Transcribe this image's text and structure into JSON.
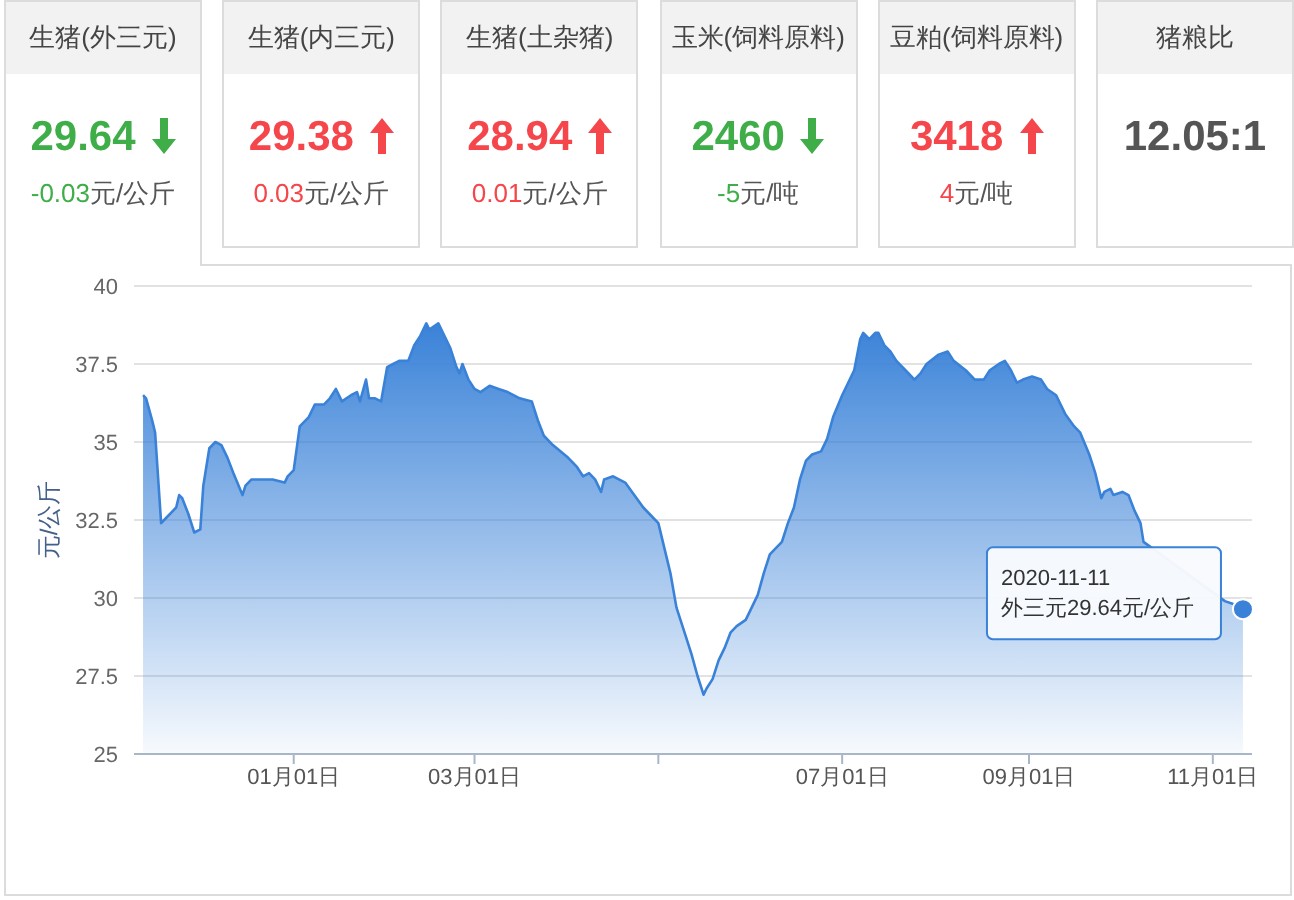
{
  "chart_data": [
    {
      "type": "other",
      "data_labels": true,
      "categories": [
        "生猪(外三元)",
        "生猪(内三元)",
        "生猪(土杂猪)",
        "玉米(饲料原料)",
        "豆粕(饲料原料)",
        "猪粮比"
      ],
      "series": [
        {
          "values": [
            29.64,
            29.38,
            28.94,
            2460,
            3418,
            12.05
          ],
          "value_labels": [
            "29.64",
            "29.38",
            "28.94",
            "2460",
            "3418",
            "12.05:1"
          ]
        },
        {
          "values": [
            -0.03,
            0.03,
            0.01,
            -5,
            4,
            null
          ]
        }
      ],
      "annotations": [
        "元/公斤",
        "元/公斤",
        "元/公斤",
        "元/吨",
        "元/吨",
        null
      ]
    },
    {
      "type": "area",
      "ylabel": "元/公斤",
      "x": [
        "2019-11-12",
        "2019-11-13",
        "2019-11-15",
        "2019-11-16",
        "2019-11-18",
        "2019-11-19",
        "2019-11-22",
        "2019-11-23",
        "2019-11-24",
        "2019-11-25",
        "2019-11-27",
        "2019-11-29",
        "2019-12-01",
        "2019-12-02",
        "2019-12-04",
        "2019-12-06",
        "2019-12-08",
        "2019-12-10",
        "2019-12-12",
        "2019-12-15",
        "2019-12-16",
        "2019-12-18",
        "2019-12-21",
        "2019-12-25",
        "2019-12-29",
        "2019-12-30",
        "2020-01-01",
        "2020-01-03",
        "2020-01-06",
        "2020-01-08",
        "2020-01-11",
        "2020-01-13",
        "2020-01-15",
        "2020-01-17",
        "2020-01-20",
        "2020-01-22",
        "2020-01-23",
        "2020-01-25",
        "2020-01-26",
        "2020-01-28",
        "2020-01-30",
        "2020-02-01",
        "2020-02-03",
        "2020-02-05",
        "2020-02-08",
        "2020-02-10",
        "2020-02-12",
        "2020-02-14",
        "2020-02-15",
        "2020-02-18",
        "2020-02-20",
        "2020-02-22",
        "2020-02-24",
        "2020-02-25",
        "2020-02-26",
        "2020-02-28",
        "2020-03-01",
        "2020-03-03",
        "2020-03-06",
        "2020-03-09",
        "2020-03-12",
        "2020-03-16",
        "2020-03-20",
        "2020-03-22",
        "2020-03-24",
        "2020-03-27",
        "2020-04-01",
        "2020-04-04",
        "2020-04-06",
        "2020-04-08",
        "2020-04-10",
        "2020-04-12",
        "2020-04-13",
        "2020-04-16",
        "2020-04-20",
        "2020-04-23",
        "2020-04-26",
        "2020-04-28",
        "2020-05-01",
        "2020-05-03",
        "2020-05-05",
        "2020-05-07",
        "2020-05-10",
        "2020-05-12",
        "2020-05-14",
        "2020-05-16",
        "2020-05-17",
        "2020-05-19",
        "2020-05-21",
        "2020-05-23",
        "2020-05-25",
        "2020-05-27",
        "2020-05-30",
        "2020-06-01",
        "2020-06-03",
        "2020-06-05",
        "2020-06-07",
        "2020-06-11",
        "2020-06-13",
        "2020-06-15",
        "2020-06-17",
        "2020-06-19",
        "2020-06-21",
        "2020-06-24",
        "2020-06-26",
        "2020-06-28",
        "2020-07-01",
        "2020-07-03",
        "2020-07-05",
        "2020-07-07",
        "2020-07-08",
        "2020-07-10",
        "2020-07-12",
        "2020-07-13",
        "2020-07-15",
        "2020-07-17",
        "2020-07-19",
        "2020-07-22",
        "2020-07-25",
        "2020-07-27",
        "2020-07-29",
        "2020-08-02",
        "2020-08-05",
        "2020-08-07",
        "2020-08-11",
        "2020-08-14",
        "2020-08-17",
        "2020-08-19",
        "2020-08-22",
        "2020-08-24",
        "2020-08-26",
        "2020-08-28",
        "2020-08-30",
        "2020-09-02",
        "2020-09-05",
        "2020-09-07",
        "2020-09-10",
        "2020-09-13",
        "2020-09-16",
        "2020-09-18",
        "2020-09-21",
        "2020-09-23",
        "2020-09-25",
        "2020-09-26",
        "2020-09-28",
        "2020-09-29",
        "2020-10-02",
        "2020-10-04",
        "2020-10-06",
        "2020-10-08",
        "2020-10-09",
        "2020-10-12",
        "2020-10-14",
        "2020-10-16",
        "2020-10-18",
        "2020-10-22",
        "2020-10-25",
        "2020-10-29",
        "2020-11-02",
        "2020-11-05",
        "2020-11-08",
        "2020-11-11"
      ],
      "series": [
        {
          "color": "#3a82d8",
          "values": [
            36.5,
            36.4,
            35.7,
            35.3,
            32.4,
            32.5,
            32.8,
            32.9,
            33.3,
            33.2,
            32.7,
            32.1,
            32.2,
            33.6,
            34.8,
            35.0,
            34.9,
            34.5,
            34.0,
            33.3,
            33.6,
            33.8,
            33.8,
            33.8,
            33.7,
            33.9,
            34.1,
            35.5,
            35.8,
            36.2,
            36.2,
            36.4,
            36.7,
            36.3,
            36.5,
            36.6,
            36.3,
            37.0,
            36.4,
            36.4,
            36.3,
            37.4,
            37.5,
            37.6,
            37.6,
            38.1,
            38.4,
            38.8,
            38.6,
            38.8,
            38.4,
            38.0,
            37.4,
            37.2,
            37.5,
            37.0,
            36.7,
            36.6,
            36.8,
            36.7,
            36.6,
            36.4,
            36.3,
            35.7,
            35.2,
            34.9,
            34.5,
            34.2,
            33.9,
            34.0,
            33.8,
            33.4,
            33.8,
            33.9,
            33.7,
            33.3,
            32.9,
            32.7,
            32.4,
            31.6,
            30.8,
            29.7,
            28.8,
            28.2,
            27.5,
            26.9,
            27.1,
            27.4,
            28.0,
            28.4,
            28.9,
            29.1,
            29.3,
            29.7,
            30.1,
            30.8,
            31.4,
            31.8,
            32.4,
            32.9,
            33.8,
            34.4,
            34.6,
            34.7,
            35.1,
            35.8,
            36.5,
            36.9,
            37.3,
            38.3,
            38.5,
            38.3,
            38.5,
            38.5,
            38.1,
            37.9,
            37.6,
            37.3,
            37.0,
            37.2,
            37.5,
            37.8,
            37.9,
            37.6,
            37.3,
            37.0,
            37.0,
            37.3,
            37.5,
            37.6,
            37.3,
            36.9,
            37.0,
            37.1,
            37.0,
            36.7,
            36.5,
            35.9,
            35.5,
            35.3,
            34.6,
            34.0,
            33.2,
            33.4,
            33.5,
            33.3,
            33.4,
            33.3,
            32.8,
            32.4,
            31.8,
            null,
            null,
            null,
            null,
            null,
            null,
            null,
            null,
            29.9,
            29.8,
            29.64
          ]
        }
      ],
      "xlim": [
        "2019-11-09",
        "2020-11-14"
      ],
      "xticks": [
        {
          "value": "2020-01-01",
          "label": "01月01日"
        },
        {
          "value": "2020-03-01",
          "label": "03月01日"
        },
        {
          "value": "2020-05-01",
          "label": null
        },
        {
          "value": "2020-07-01",
          "label": "07月01日"
        },
        {
          "value": "2020-09-01",
          "label": "09月01日"
        },
        {
          "value": "2020-11-01",
          "label": "11月01日"
        }
      ],
      "ylim": [
        25,
        40
      ],
      "yticks": [
        25,
        27.5,
        30,
        32.5,
        35,
        37.5,
        40
      ],
      "grid": "y",
      "annotations": [
        {
          "text": "2020-11-11\n外三元29.64元/公斤",
          "x": "2020-11-11",
          "y": 29.64
        }
      ]
    }
  ]
}
